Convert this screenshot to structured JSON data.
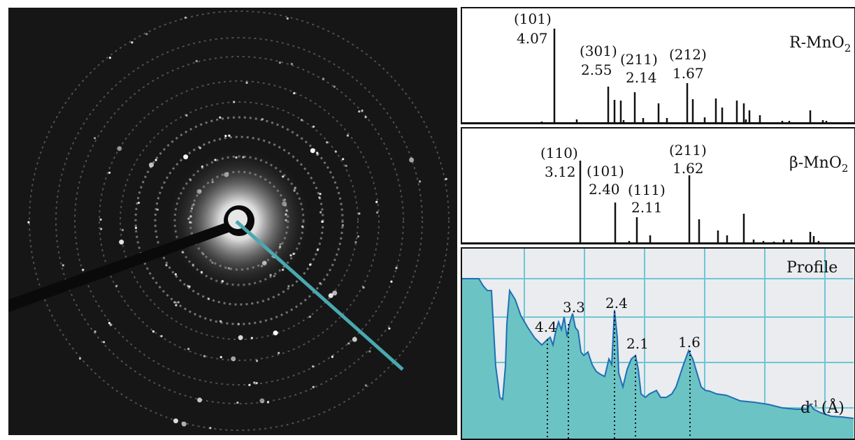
{
  "saed": {
    "description_icon": "electron-diffraction-pattern",
    "beam_stop_color": "#111111",
    "profile_line_color": "#4aa8b0"
  },
  "reference_panels": [
    {
      "phase_text": "R-MnO",
      "phase_sub": "2",
      "labels": [
        {
          "hkl": "(101)",
          "d": "4.07"
        },
        {
          "hkl": "(301)",
          "d": "2.55"
        },
        {
          "hkl": "(211)",
          "d": "2.14"
        },
        {
          "hkl": "(212)",
          "d": "1.67"
        }
      ]
    },
    {
      "phase_text": "β-MnO",
      "phase_sub": "2",
      "labels": [
        {
          "hkl": "(110)",
          "d": "3.12"
        },
        {
          "hkl": "(101)",
          "d": "2.40"
        },
        {
          "hkl": "(111)",
          "d": "2.11"
        },
        {
          "hkl": "(211)",
          "d": "1.62"
        }
      ]
    }
  ],
  "profile": {
    "title": "Profile",
    "axis_label_base": "d",
    "axis_label_sup": "-1",
    "axis_label_unit": "(Å)",
    "fill_color": "#6cc3c4",
    "line_color": "#1e6fb5",
    "grid_color": "#6ec6d4",
    "peaks": [
      {
        "label": "4.4"
      },
      {
        "label": "3.3"
      },
      {
        "label": "2.4"
      },
      {
        "label": "2.1"
      },
      {
        "label": "1.6"
      }
    ]
  }
}
